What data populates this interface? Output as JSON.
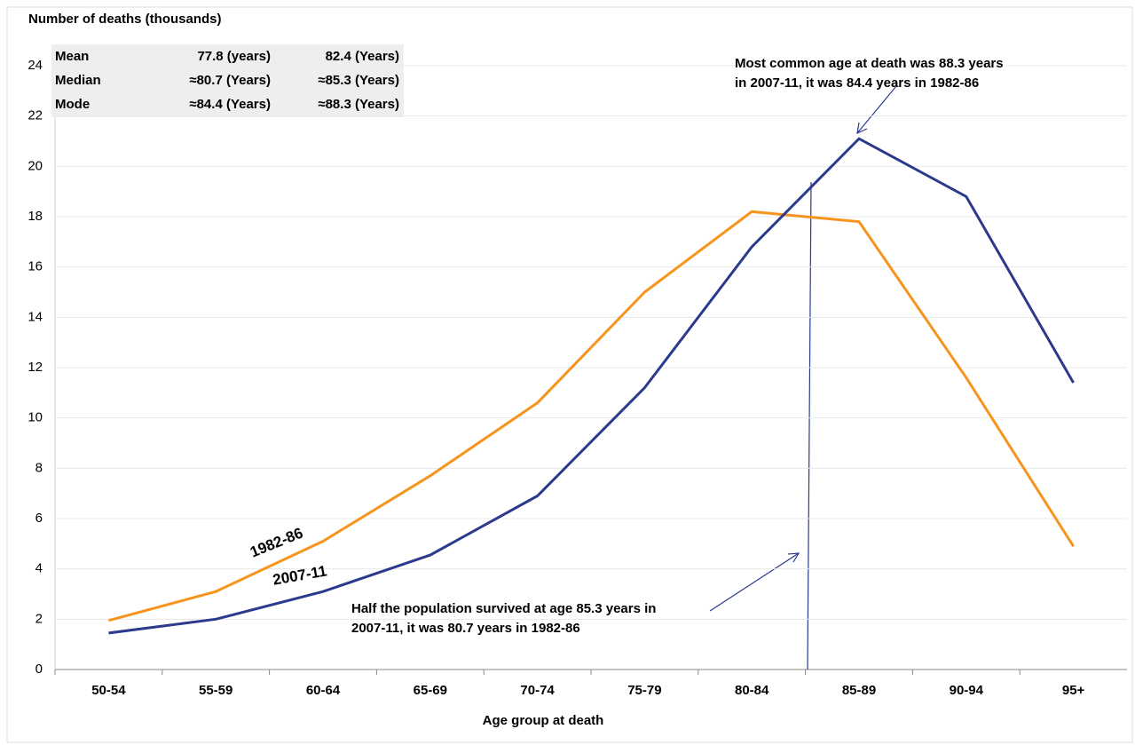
{
  "chart_data": {
    "type": "line",
    "y_label": "Number of deaths (thousands)",
    "x_label": "Age group at death",
    "categories": [
      "50-54",
      "55-59",
      "60-64",
      "65-69",
      "70-74",
      "75-79",
      "80-84",
      "85-89",
      "90-94",
      "95+"
    ],
    "series": [
      {
        "name": "1982-86",
        "color": "#f7941d",
        "values": [
          1.95,
          3.1,
          5.1,
          7.7,
          10.6,
          15.0,
          18.2,
          17.8,
          11.6,
          4.9
        ]
      },
      {
        "name": "2007-11",
        "color": "#2b3a8c",
        "values": [
          1.45,
          2.0,
          3.1,
          4.55,
          6.9,
          11.2,
          16.8,
          21.1,
          18.8,
          11.4
        ]
      }
    ],
    "ylim": [
      0,
      24
    ],
    "yticks": [
      0,
      2,
      4,
      6,
      8,
      10,
      12,
      14,
      16,
      18,
      20,
      22,
      24
    ],
    "grid": true,
    "table": [
      [
        "Mean",
        "77.8 (years)",
        "82.4 (Years)"
      ],
      [
        "Median",
        "≈80.7 (Years)",
        "≈85.3 (Years)"
      ],
      [
        "Mode",
        "≈84.4 (Years)",
        "≈88.3 (Years)"
      ]
    ],
    "annotations": [
      [
        "Most common age at death was 88.3 years",
        "in 2007-11,  it was 84.4 years in 1982-86"
      ],
      [
        "Half the population survived at age 85.3 years in",
        "2007-11, it was 80.7 years in 1982-86"
      ]
    ]
  }
}
